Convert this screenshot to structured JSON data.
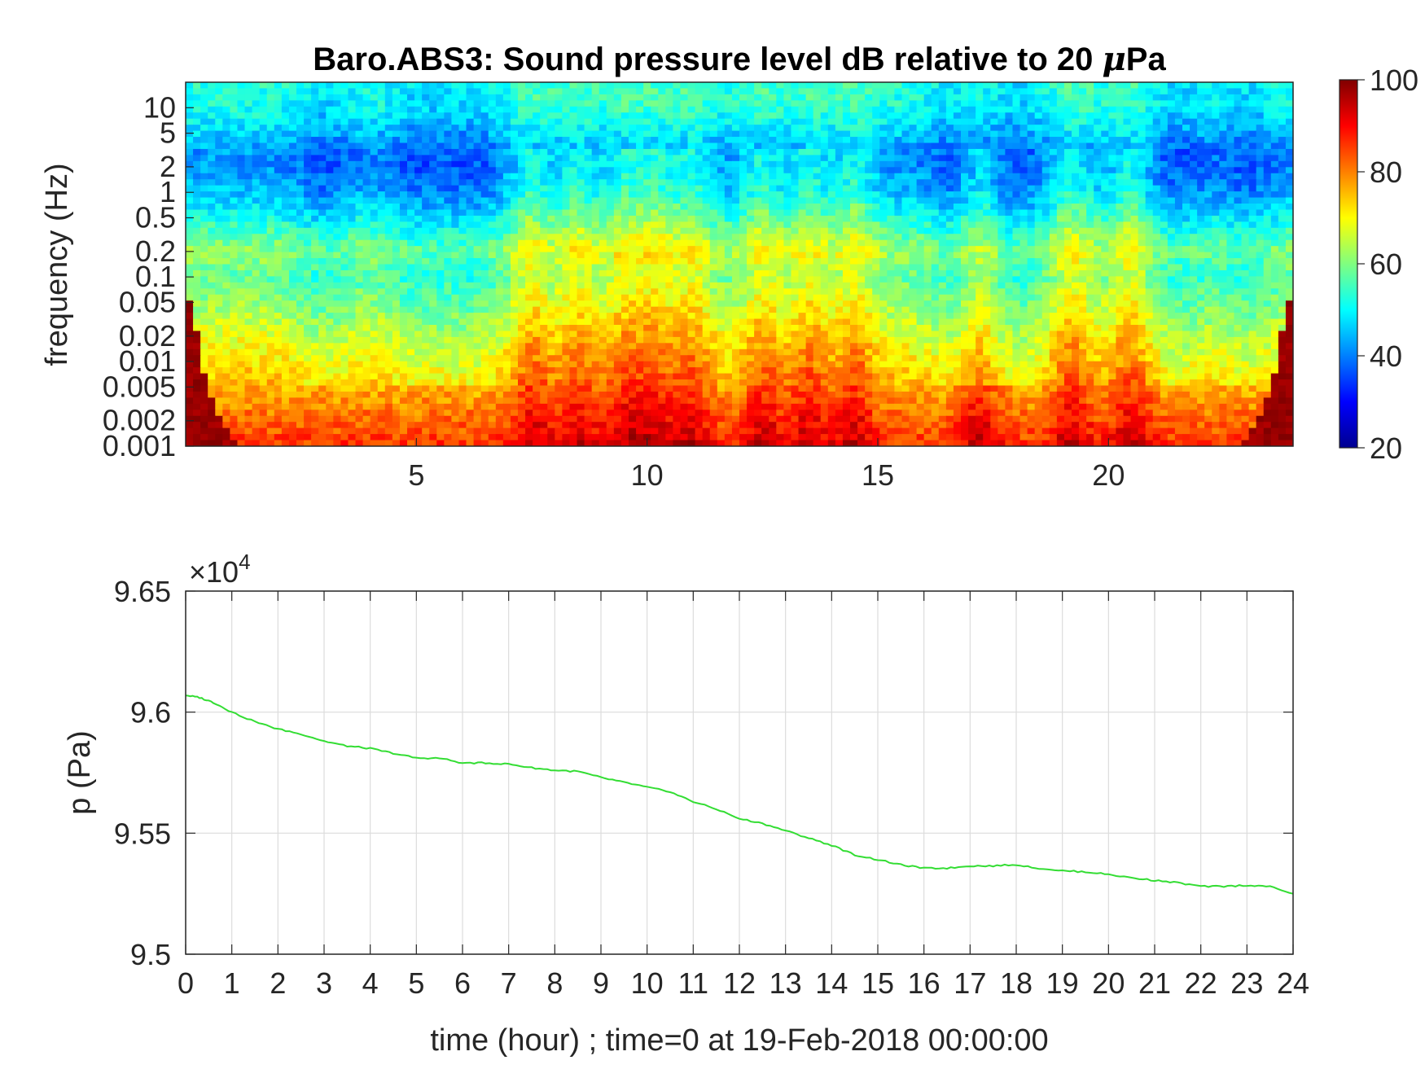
{
  "figure": {
    "title_prefix": "Baro.ABS3: Sound pressure level dB relative to 20 ",
    "title_mu": "μ",
    "title_suffix": "Pa"
  },
  "chart_data": [
    {
      "type": "heatmap",
      "title": "Baro.ABS3: Sound pressure level dB relative to 20 μPa",
      "ylabel": "frequency (Hz)",
      "xlabel": "",
      "xlim": [
        0,
        24
      ],
      "ylim": [
        0.001,
        20
      ],
      "y_scale": "log",
      "x_ticks": [
        5,
        10,
        15,
        20
      ],
      "x_tick_labels": [
        "5",
        "10",
        "15",
        "20"
      ],
      "y_ticks": [
        10,
        5,
        2,
        1,
        0.5,
        0.2,
        0.1,
        0.05,
        0.02,
        0.01,
        0.005,
        0.002,
        0.001
      ],
      "y_tick_labels": [
        "10",
        "5",
        "2",
        "1",
        "0.5",
        "0.2",
        "0.1",
        "0.05",
        "0.02",
        "0.01",
        "0.005",
        "0.002",
        "0.001"
      ],
      "colorbar": {
        "colormap": "jet",
        "clim": [
          20,
          100
        ],
        "ticks": [
          20,
          40,
          60,
          80,
          100
        ],
        "tick_labels": [
          "20",
          "40",
          "60",
          "80",
          "100"
        ]
      },
      "levels_db": {
        "note_free": true,
        "freq_hz": [
          20,
          10,
          5,
          3,
          2,
          1,
          0.5,
          0.2,
          0.1,
          0.05,
          0.02,
          0.01,
          0.005,
          0.002,
          0.001
        ],
        "mean_db": [
          53,
          52,
          47,
          42,
          42,
          45,
          52,
          62,
          58,
          62,
          68,
          72,
          76,
          82,
          86
        ],
        "activity_hours": [
          7.5,
          8.5,
          9.5,
          10.2,
          11.0,
          12.5,
          13.5,
          14.5,
          17.2,
          19.2,
          20.5
        ],
        "quiet_hours": [
          3.0,
          5.0,
          6.2,
          16.8,
          18.0,
          21.5,
          23.0
        ]
      }
    },
    {
      "type": "line",
      "title": "",
      "xlabel": "time (hour) ; time=0 at 19-Feb-2018 00:00:00",
      "ylabel": "p (Pa)",
      "xlim": [
        0,
        24
      ],
      "ylim": [
        95000,
        96500
      ],
      "exponent_label": "×10",
      "exponent_power": "4",
      "x_ticks": [
        0,
        1,
        2,
        3,
        4,
        5,
        6,
        7,
        8,
        9,
        10,
        11,
        12,
        13,
        14,
        15,
        16,
        17,
        18,
        19,
        20,
        21,
        22,
        23,
        24
      ],
      "x_tick_labels": [
        "0",
        "1",
        "2",
        "3",
        "4",
        "5",
        "6",
        "7",
        "8",
        "9",
        "10",
        "11",
        "12",
        "13",
        "14",
        "15",
        "16",
        "17",
        "18",
        "19",
        "20",
        "21",
        "22",
        "23",
        "24"
      ],
      "y_ticks": [
        95000,
        95500,
        96000,
        96500
      ],
      "y_tick_labels": [
        "9.5",
        "9.55",
        "9.6",
        "9.65"
      ],
      "grid": true,
      "line_color": "#33dd33",
      "series": [
        {
          "x": [
            0,
            0.3,
            0.6,
            1,
            1.5,
            2,
            2.5,
            3,
            3.5,
            4,
            4.5,
            5,
            5.5,
            6,
            6.5,
            7,
            7.5,
            8,
            8.5,
            9,
            9.5,
            10,
            10.5,
            11,
            11.5,
            12,
            12.5,
            13,
            13.5,
            14,
            14.5,
            15,
            15.5,
            16,
            16.5,
            17,
            17.5,
            18,
            18.5,
            19,
            19.5,
            20,
            20.5,
            21,
            21.5,
            22,
            22.5,
            23,
            23.5,
            24
          ],
          "y": [
            96070,
            96060,
            96040,
            96000,
            95960,
            95930,
            95910,
            95880,
            95860,
            95850,
            95830,
            95810,
            95810,
            95790,
            95790,
            95785,
            95770,
            95760,
            95755,
            95730,
            95710,
            95690,
            95670,
            95630,
            95600,
            95560,
            95540,
            95510,
            95480,
            95450,
            95410,
            95390,
            95370,
            95355,
            95355,
            95365,
            95365,
            95370,
            95355,
            95345,
            95340,
            95330,
            95315,
            95305,
            95295,
            95280,
            95280,
            95285,
            95280,
            95250
          ]
        }
      ]
    }
  ]
}
